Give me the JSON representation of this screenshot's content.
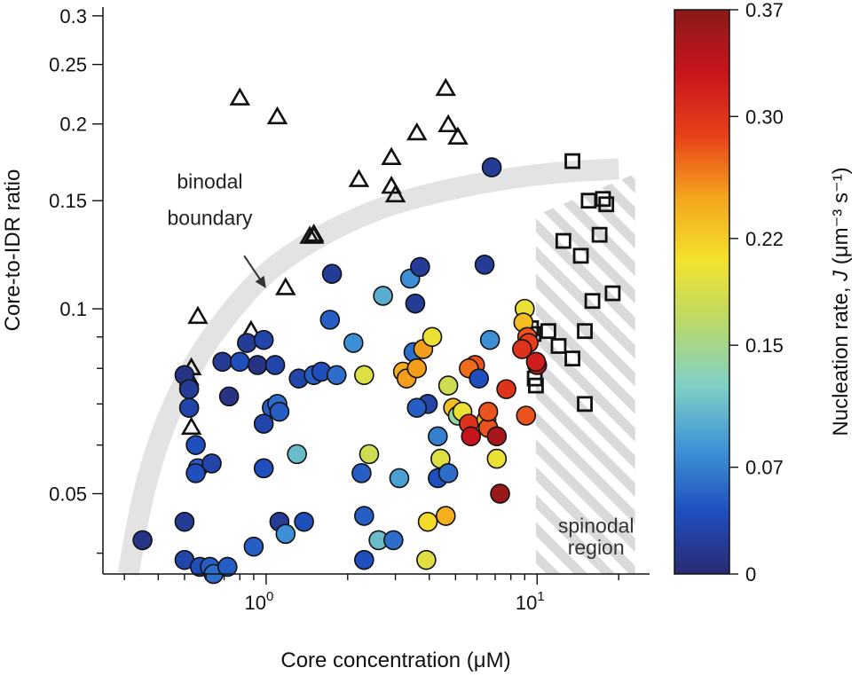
{
  "chart_data": {
    "type": "scatter",
    "xlabel": "Core concentration (μM)",
    "ylabel": "Core-to-IDR ratio",
    "x_scale": "log",
    "y_scale": "log",
    "xlim": [
      0.25,
      26
    ],
    "ylim": [
      0.037,
      0.31
    ],
    "x_ticks": [
      {
        "value": 1,
        "base": "10",
        "exp": "0"
      },
      {
        "value": 10,
        "base": "10",
        "exp": "1"
      }
    ],
    "y_ticks": [
      {
        "value": 0.05,
        "label": "0.05"
      },
      {
        "value": 0.1,
        "label": "0.1"
      },
      {
        "value": 0.15,
        "label": "0.15"
      },
      {
        "value": 0.2,
        "label": "0.2"
      },
      {
        "value": 0.25,
        "label": "0.25"
      },
      {
        "value": 0.3,
        "label": "0.3"
      }
    ],
    "colorbar": {
      "label_prefix": "Nucleation rate, ",
      "label_var": "J",
      "label_units": " (μm⁻³ s⁻¹)",
      "min": 0,
      "max": 0.37,
      "ticks": [
        {
          "value": 0,
          "label": "0"
        },
        {
          "value": 0.07,
          "label": "0.07"
        },
        {
          "value": 0.15,
          "label": "0.15"
        },
        {
          "value": 0.22,
          "label": "0.22"
        },
        {
          "value": 0.3,
          "label": "0.30"
        },
        {
          "value": 0.37,
          "label": "0.37"
        }
      ],
      "colormap": [
        "#2a2a72",
        "#1f4fbf",
        "#3f93d6",
        "#7fd0c6",
        "#b9d96a",
        "#f3e22b",
        "#f4a51d",
        "#e8401a",
        "#c8141c",
        "#8a1a1a"
      ]
    },
    "annotations": [
      {
        "text": "binodal",
        "x": 0.62,
        "y": 0.157
      },
      {
        "text": "boundary",
        "x": 0.62,
        "y": 0.137
      },
      {
        "text": "spinodal",
        "x": 16.5,
        "y": 0.0432
      },
      {
        "text": "region",
        "x": 16.5,
        "y": 0.0398
      }
    ],
    "arrow": {
      "from": [
        0.83,
        0.122
      ],
      "to": [
        1.0,
        0.108
      ]
    },
    "binodal_curve": [
      [
        0.31,
        0.037
      ],
      [
        0.35,
        0.05
      ],
      [
        0.42,
        0.065
      ],
      [
        0.55,
        0.083
      ],
      [
        0.75,
        0.1
      ],
      [
        1.0,
        0.115
      ],
      [
        1.5,
        0.13
      ],
      [
        2.5,
        0.145
      ],
      [
        4.0,
        0.154
      ],
      [
        7.0,
        0.162
      ],
      [
        12,
        0.167
      ],
      [
        20,
        0.169
      ]
    ],
    "spinodal_region": {
      "x_min": 9.9,
      "x_max": 23,
      "y_top_left": 0.142,
      "y_top_right": 0.166
    },
    "series": [
      {
        "name": "triangle",
        "marker": "triangle",
        "points": [
          [
            0.8,
            0.22
          ],
          [
            1.1,
            0.205
          ],
          [
            4.6,
            0.228
          ],
          [
            4.7,
            0.199
          ],
          [
            5.1,
            0.19
          ],
          [
            3.6,
            0.193
          ],
          [
            2.9,
            0.176
          ],
          [
            2.2,
            0.162
          ],
          [
            2.9,
            0.158
          ],
          [
            3.0,
            0.153
          ],
          [
            1.5,
            0.132
          ],
          [
            1.45,
            0.131
          ],
          [
            1.5,
            0.131
          ],
          [
            1.18,
            0.108
          ],
          [
            0.88,
            0.092
          ],
          [
            0.56,
            0.097
          ],
          [
            0.53,
            0.08
          ],
          [
            0.52,
            0.077
          ],
          [
            0.53,
            0.064
          ]
        ]
      },
      {
        "name": "square",
        "marker": "square",
        "points": [
          [
            13.5,
            0.174
          ],
          [
            15.5,
            0.15
          ],
          [
            17.5,
            0.151
          ],
          [
            18.0,
            0.148
          ],
          [
            12.5,
            0.129
          ],
          [
            17.0,
            0.132
          ],
          [
            14.5,
            0.122
          ],
          [
            19.0,
            0.106
          ],
          [
            16.0,
            0.103
          ],
          [
            9.5,
            0.093
          ],
          [
            9.7,
            0.091
          ],
          [
            11.0,
            0.092
          ],
          [
            12.0,
            0.087
          ],
          [
            15.0,
            0.092
          ],
          [
            13.5,
            0.083
          ],
          [
            9.8,
            0.077
          ],
          [
            9.9,
            0.075
          ],
          [
            15.0,
            0.07
          ]
        ]
      },
      {
        "name": "circle",
        "marker": "circle",
        "points": [
          [
            0.35,
            0.042,
            0.01
          ],
          [
            0.5,
            0.078,
            0.01
          ],
          [
            0.52,
            0.074,
            0.02
          ],
          [
            0.52,
            0.069,
            0.03
          ],
          [
            0.55,
            0.06,
            0.04
          ],
          [
            0.56,
            0.055,
            0.05
          ],
          [
            0.55,
            0.054,
            0.04
          ],
          [
            0.63,
            0.056,
            0.03
          ],
          [
            0.69,
            0.082,
            0.02
          ],
          [
            0.73,
            0.072,
            0.01
          ],
          [
            0.8,
            0.082,
            0.04
          ],
          [
            0.85,
            0.088,
            0.02
          ],
          [
            0.93,
            0.081,
            0.01
          ],
          [
            0.98,
            0.089,
            0.03
          ],
          [
            1.08,
            0.081,
            0.03
          ],
          [
            1.05,
            0.069,
            0.05
          ],
          [
            0.98,
            0.065,
            0.03
          ],
          [
            1.1,
            0.07,
            0.06
          ],
          [
            1.12,
            0.068,
            0.05
          ],
          [
            0.98,
            0.055,
            0.04
          ],
          [
            0.5,
            0.045,
            0.02
          ],
          [
            0.5,
            0.039,
            0.03
          ],
          [
            0.57,
            0.038,
            0.04
          ],
          [
            0.62,
            0.038,
            0.05
          ],
          [
            0.64,
            0.037,
            0.06
          ],
          [
            0.72,
            0.038,
            0.05
          ],
          [
            0.9,
            0.041,
            0.05
          ],
          [
            1.12,
            0.045,
            0.02
          ],
          [
            1.18,
            0.043,
            0.08
          ],
          [
            1.38,
            0.045,
            0.04
          ],
          [
            1.3,
            0.058,
            0.11
          ],
          [
            1.32,
            0.077,
            0.03
          ],
          [
            1.5,
            0.078,
            0.05
          ],
          [
            1.6,
            0.079,
            0.04
          ],
          [
            1.72,
            0.096,
            0.05
          ],
          [
            1.75,
            0.114,
            0.02
          ],
          [
            1.82,
            0.078,
            0.06
          ],
          [
            2.1,
            0.088,
            0.08
          ],
          [
            2.3,
            0.078,
            0.19
          ],
          [
            2.4,
            0.058,
            0.18
          ],
          [
            2.25,
            0.054,
            0.05
          ],
          [
            2.3,
            0.046,
            0.05
          ],
          [
            2.3,
            0.039,
            0.04
          ],
          [
            2.6,
            0.042,
            0.11
          ],
          [
            2.95,
            0.042,
            0.06
          ],
          [
            2.7,
            0.105,
            0.1
          ],
          [
            3.1,
            0.053,
            0.09
          ],
          [
            3.2,
            0.079,
            0.24
          ],
          [
            3.3,
            0.077,
            0.25
          ],
          [
            3.5,
            0.085,
            0.06
          ],
          [
            3.4,
            0.112,
            0.08
          ],
          [
            3.7,
            0.117,
            0.02
          ],
          [
            3.55,
            0.102,
            0.02
          ],
          [
            3.6,
            0.08,
            0.25
          ],
          [
            3.8,
            0.086,
            0.25
          ],
          [
            3.95,
            0.07,
            0.03
          ],
          [
            3.6,
            0.069,
            0.05
          ],
          [
            3.95,
            0.045,
            0.21
          ],
          [
            4.1,
            0.09,
            0.2
          ],
          [
            4.3,
            0.062,
            0.07
          ],
          [
            4.4,
            0.057,
            0.19
          ],
          [
            4.3,
            0.053,
            0.04
          ],
          [
            4.7,
            0.054,
            0.06
          ],
          [
            4.6,
            0.046,
            0.24
          ],
          [
            3.9,
            0.039,
            0.19
          ],
          [
            4.7,
            0.075,
            0.18
          ],
          [
            4.9,
            0.069,
            0.23
          ],
          [
            5.1,
            0.067,
            0.14
          ],
          [
            5.3,
            0.068,
            0.2
          ],
          [
            5.6,
            0.065,
            0.3
          ],
          [
            5.7,
            0.062,
            0.33
          ],
          [
            5.9,
            0.081,
            0.28
          ],
          [
            5.6,
            0.08,
            0.27
          ],
          [
            6.1,
            0.077,
            0.04
          ],
          [
            6.5,
            0.066,
            0.23
          ],
          [
            6.6,
            0.064,
            0.28
          ],
          [
            7.1,
            0.062,
            0.35
          ],
          [
            6.7,
            0.089,
            0.08
          ],
          [
            6.4,
            0.118,
            0.02
          ],
          [
            6.8,
            0.17,
            0.02
          ],
          [
            6.6,
            0.068,
            0.28
          ],
          [
            7.3,
            0.05,
            0.36
          ],
          [
            7.1,
            0.057,
            0.2
          ],
          [
            7.7,
            0.074,
            0.3
          ],
          [
            9.0,
            0.1,
            0.2
          ],
          [
            8.9,
            0.095,
            0.23
          ],
          [
            9.2,
            0.09,
            0.28
          ],
          [
            9.3,
            0.088,
            0.29
          ],
          [
            8.8,
            0.086,
            0.3
          ],
          [
            10.0,
            0.081,
            0.34
          ],
          [
            9.9,
            0.082,
            0.32
          ],
          [
            9.1,
            0.067,
            0.28
          ]
        ]
      }
    ]
  }
}
